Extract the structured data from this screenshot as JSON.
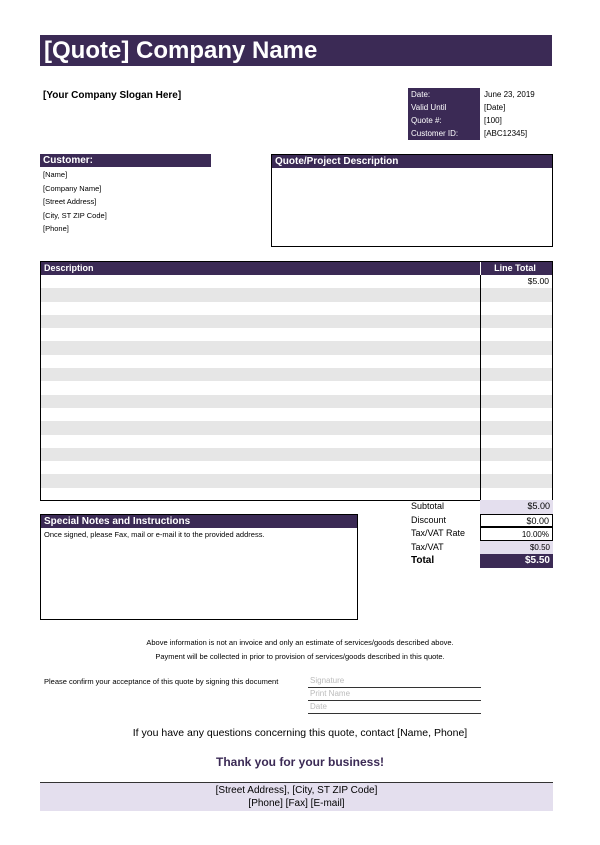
{
  "header": {
    "title": "[Quote] Company Name",
    "slogan": "[Your Company Slogan Here]"
  },
  "meta": [
    {
      "label": "Date:",
      "value": "June 23, 2019"
    },
    {
      "label": "Valid Until",
      "value": "[Date]"
    },
    {
      "label": "Quote #:",
      "value": "[100]"
    },
    {
      "label": "Customer ID:",
      "value": "[ABC12345]"
    }
  ],
  "customer": {
    "heading": "Customer:",
    "lines": [
      "[Name]",
      "[Company Name]",
      "[Street Address]",
      "[City, ST  ZIP Code]",
      "[Phone]"
    ]
  },
  "project": {
    "heading": "Quote/Project Description",
    "text": ""
  },
  "items": {
    "col_description": "Description",
    "col_total": "Line Total",
    "rows": [
      {
        "description": "",
        "total": "$5.00"
      }
    ]
  },
  "totals": [
    {
      "label": "Subtotal",
      "value": "$5.00"
    },
    {
      "label": "Discount",
      "value": "$0.00"
    },
    {
      "label": "Tax/VAT Rate",
      "value": "10.00%"
    },
    {
      "label": "Tax/VAT",
      "value": "$0.50"
    },
    {
      "label": "Total",
      "value": "$5.50"
    }
  ],
  "notes": {
    "heading": "Special Notes and Instructions",
    "text": "Once signed, please Fax, mail or e-mail it to the provided address."
  },
  "disclaimer": [
    "Above information is not an invoice and only an estimate of services/goods described above.",
    "Payment will be collected in prior to provision of services/goods described in this quote."
  ],
  "acceptance": {
    "prompt": "Please confirm your acceptance of this quote by signing this document",
    "signature_placeholder": "Signature",
    "name_placeholder": "Print Name",
    "date_placeholder": "Date"
  },
  "contact": "If you have any questions concerning this quote, contact [Name, Phone]",
  "thanks": "Thank you for your business!",
  "footer": {
    "address": "[Street Address], [City, ST  ZIP Code]",
    "contact": "[Phone]  [Fax]  [E-mail]"
  },
  "colors": {
    "accent": "#3b2a55",
    "light": "#e4dfee",
    "stripe": "#e6e6e6"
  }
}
